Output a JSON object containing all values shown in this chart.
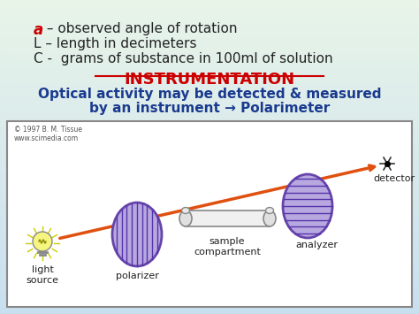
{
  "bg_gradient_top": "#c8dff0",
  "bg_gradient_bottom": "#e8f4e8",
  "line1_a": "a",
  "line1_rest": " – observed angle of rotation",
  "line2": "L – length in decimeters",
  "line3": "C -  grams of substance in 100ml of solution",
  "heading": "INSTRUMENTATION",
  "subtext1": "Optical activity may be detected & measured",
  "subtext2": "by an instrument → Polarimeter",
  "diagram_bg": "#ffffff",
  "diagram_border": "#888888",
  "copyright": "© 1997 B. M. Tissue\nwww.scimedia.com",
  "label_light_source": "light\nsource",
  "label_polarizer": "polarizer",
  "label_sample": "sample\ncompartment",
  "label_analyzer": "analyzer",
  "label_detector": "detector",
  "text_color_red": "#cc0000",
  "text_color_blue": "#1a3a8f",
  "text_color_dark": "#222222",
  "text_color_gray": "#555555",
  "disk_fill": "#b8a8e0",
  "disk_edge": "#6644aa",
  "disk_line": "#5533aa",
  "beam_color": "#e05010",
  "bulb_color": "#f5f580",
  "tube_fill": "#f0f0f0",
  "tube_edge": "#888888"
}
